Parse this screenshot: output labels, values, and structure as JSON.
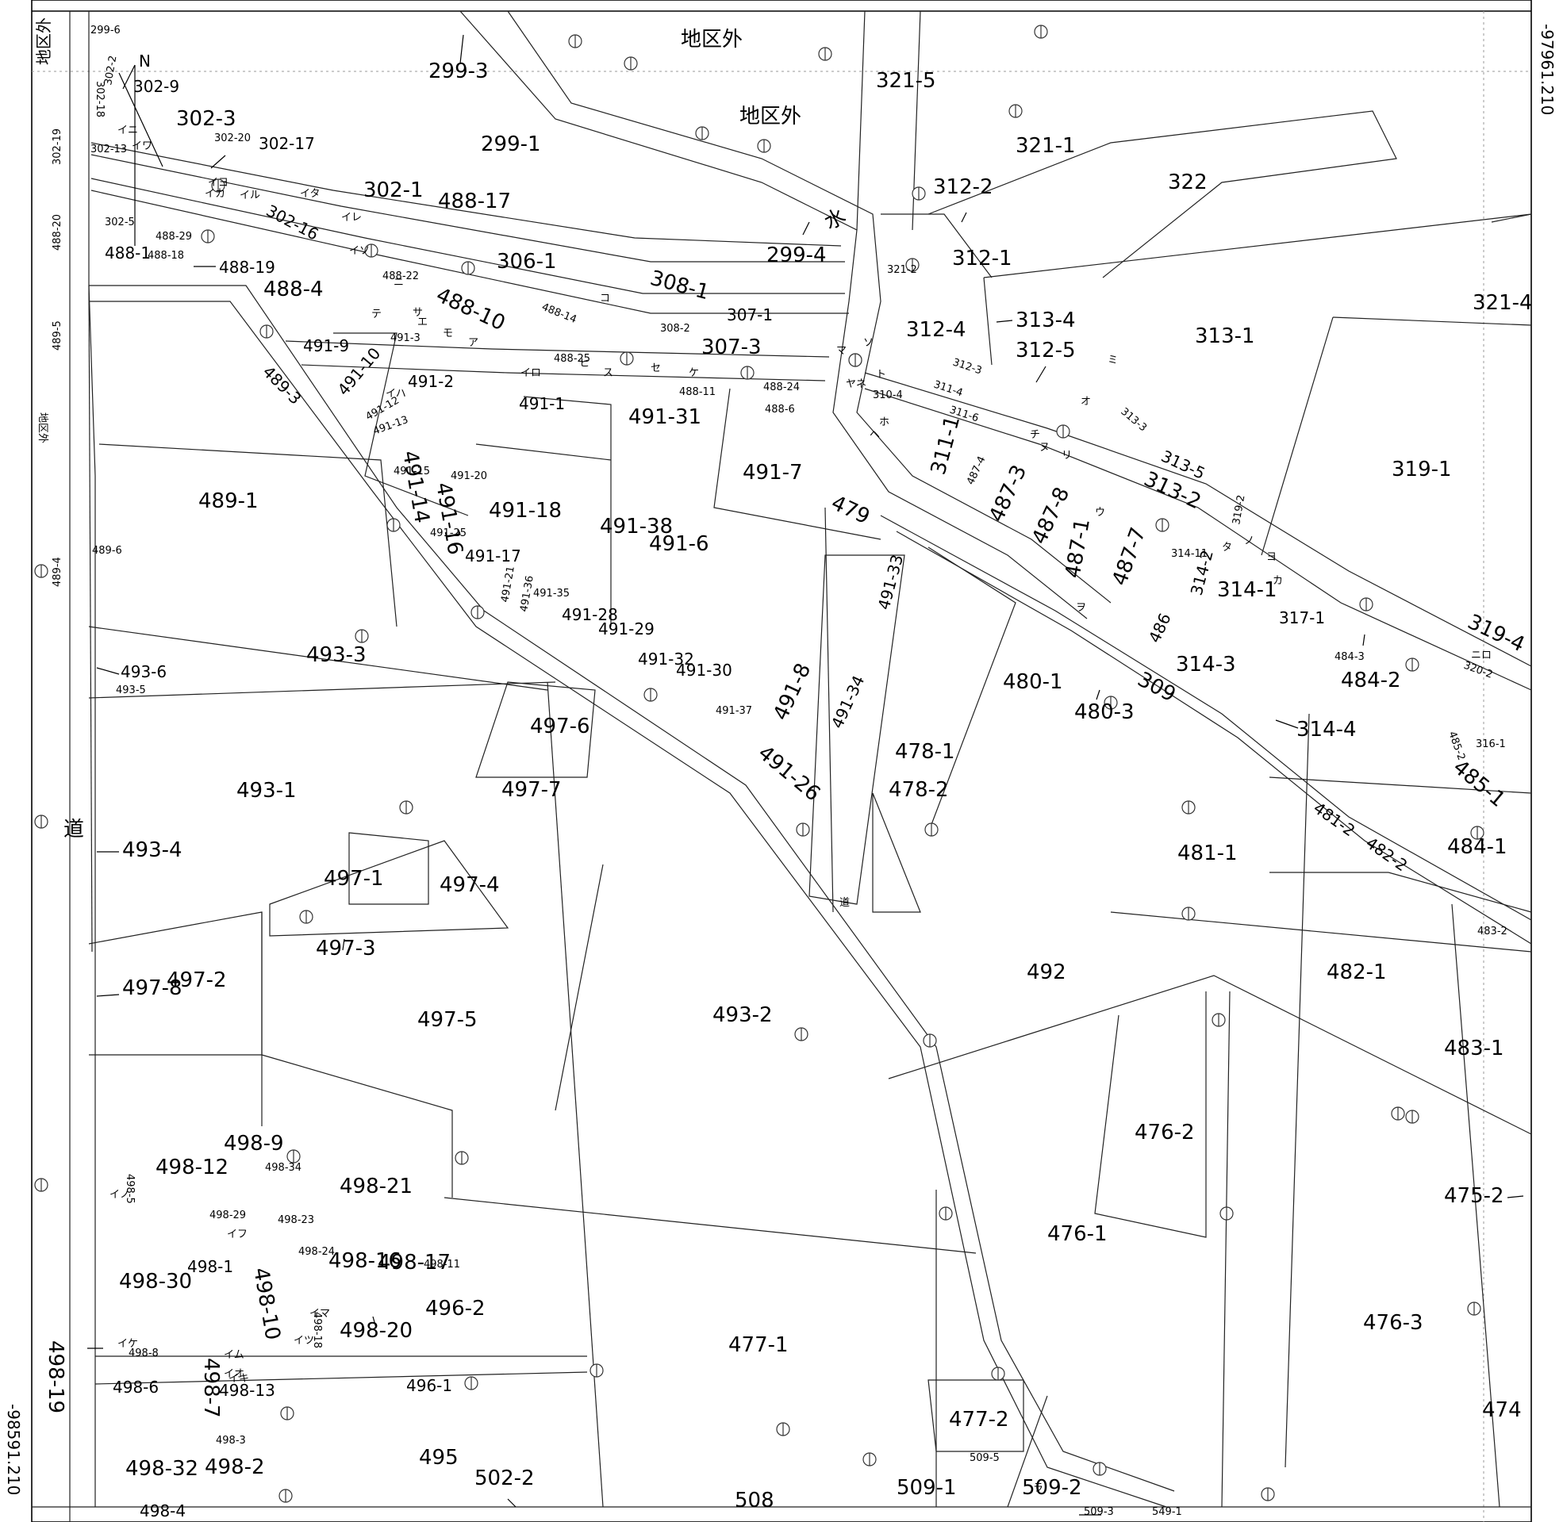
{
  "map": {
    "coords": {
      "top_right": "-97961.210",
      "bottom_left": "-98591.210"
    },
    "north_label": "N",
    "labels": {
      "outside_district_top_left": "地区外",
      "outside_district_left_small": "地区外",
      "outside_district_1": "地区外",
      "outside_district_2": "地区外",
      "road_left": "道",
      "road_center": "道",
      "water": "水"
    },
    "parcels": [
      {
        "id": "p1",
        "text": "299-3"
      },
      {
        "id": "p2",
        "text": "299-1"
      },
      {
        "id": "p3",
        "text": "299-4"
      },
      {
        "id": "p4",
        "text": "302-3"
      },
      {
        "id": "p5",
        "text": "302-1"
      },
      {
        "id": "p6",
        "text": "302-16"
      },
      {
        "id": "p7",
        "text": "488-4"
      },
      {
        "id": "p8",
        "text": "488-10"
      },
      {
        "id": "p9",
        "text": "488-19"
      },
      {
        "id": "p10",
        "text": "306-1"
      },
      {
        "id": "p11",
        "text": "308-1"
      },
      {
        "id": "p12",
        "text": "307-1"
      },
      {
        "id": "p13",
        "text": "307-3"
      },
      {
        "id": "p14",
        "text": "491-9"
      },
      {
        "id": "p15",
        "text": "491-10"
      },
      {
        "id": "p16",
        "text": "491-2"
      },
      {
        "id": "p17",
        "text": "491-1"
      },
      {
        "id": "p18",
        "text": "491-31"
      },
      {
        "id": "p19",
        "text": "491-7"
      },
      {
        "id": "p20",
        "text": "479"
      },
      {
        "id": "p21",
        "text": "489-3"
      },
      {
        "id": "p22",
        "text": "489-1"
      },
      {
        "id": "p23",
        "text": "491-18"
      },
      {
        "id": "p24",
        "text": "491-6"
      },
      {
        "id": "p25",
        "text": "493-3"
      },
      {
        "id": "p26",
        "text": "493-6"
      },
      {
        "id": "p27",
        "text": "497-6"
      },
      {
        "id": "p28",
        "text": "497-7"
      },
      {
        "id": "p29",
        "text": "493-1"
      },
      {
        "id": "p30",
        "text": "493-4"
      },
      {
        "id": "p31",
        "text": "497-1"
      },
      {
        "id": "p32",
        "text": "497-4"
      },
      {
        "id": "p33",
        "text": "497-3"
      },
      {
        "id": "p34",
        "text": "497-5"
      },
      {
        "id": "p35",
        "text": "493-2"
      },
      {
        "id": "p36",
        "text": "491-8"
      },
      {
        "id": "p37",
        "text": "491-26"
      },
      {
        "id": "p38",
        "text": "491-34"
      },
      {
        "id": "p39",
        "text": "491-33"
      },
      {
        "id": "p40",
        "text": "478-1"
      },
      {
        "id": "p41",
        "text": "480-1"
      },
      {
        "id": "p42",
        "text": "492"
      },
      {
        "id": "p43",
        "text": "481-1"
      },
      {
        "id": "p44",
        "text": "482-1"
      },
      {
        "id": "p45",
        "text": "483-1"
      },
      {
        "id": "p46",
        "text": "476-2"
      },
      {
        "id": "p47",
        "text": "476-1"
      },
      {
        "id": "p48",
        "text": "476-3"
      },
      {
        "id": "p49",
        "text": "475-2"
      },
      {
        "id": "p50",
        "text": "474"
      },
      {
        "id": "p51",
        "text": "477-1"
      },
      {
        "id": "p52",
        "text": "477-2"
      },
      {
        "id": "p53",
        "text": "496-2"
      },
      {
        "id": "p54",
        "text": "496-1"
      },
      {
        "id": "p55",
        "text": "498-9"
      },
      {
        "id": "p56",
        "text": "498-21"
      },
      {
        "id": "p57",
        "text": "498-20"
      },
      {
        "id": "p58",
        "text": "498-19"
      },
      {
        "id": "p59",
        "text": "498-6"
      },
      {
        "id": "p60",
        "text": "498-13"
      },
      {
        "id": "p61",
        "text": "498-2"
      },
      {
        "id": "p62",
        "text": "495"
      },
      {
        "id": "p63",
        "text": "502-2"
      },
      {
        "id": "p64",
        "text": "508"
      },
      {
        "id": "p65",
        "text": "509-1"
      },
      {
        "id": "p66",
        "text": "509-2"
      },
      {
        "id": "p67",
        "text": "498-4"
      },
      {
        "id": "p68",
        "text": "321-1"
      },
      {
        "id": "p69",
        "text": "312-2"
      },
      {
        "id": "p70",
        "text": "322"
      },
      {
        "id": "p71",
        "text": "312-4"
      },
      {
        "id": "p72",
        "text": "313-4"
      },
      {
        "id": "p73",
        "text": "312-5"
      },
      {
        "id": "p74",
        "text": "313-1"
      },
      {
        "id": "p75",
        "text": "321-4"
      },
      {
        "id": "p76",
        "text": "319-1"
      },
      {
        "id": "p77",
        "text": "313-5"
      },
      {
        "id": "p78",
        "text": "313-2"
      },
      {
        "id": "p79",
        "text": "314-3"
      },
      {
        "id": "p80",
        "text": "309"
      },
      {
        "id": "p81",
        "text": "484-2"
      },
      {
        "id": "p82",
        "text": "314-4"
      },
      {
        "id": "p83",
        "text": "319-4"
      },
      {
        "id": "p84",
        "text": "484-1"
      },
      {
        "id": "p85",
        "text": "485-1"
      },
      {
        "id": "p86",
        "text": "481-2"
      },
      {
        "id": "p87",
        "text": "482-2"
      },
      {
        "id": "p88",
        "text": "487-3"
      },
      {
        "id": "p89",
        "text": "487-8"
      },
      {
        "id": "p90",
        "text": "487-7"
      },
      {
        "id": "p91",
        "text": "486"
      },
      {
        "id": "p92",
        "text": "491-17"
      },
      {
        "id": "p93",
        "text": "491-28"
      },
      {
        "id": "p94",
        "text": "491-29"
      },
      {
        "id": "p95",
        "text": "491-32"
      },
      {
        "id": "p96",
        "text": "491-30"
      },
      {
        "id": "p97",
        "text": "498-30"
      },
      {
        "id": "p98",
        "text": "498-32"
      },
      {
        "id": "p99",
        "text": "498-16"
      },
      {
        "id": "p100",
        "text": "498-17"
      },
      {
        "id": "p101",
        "text": "498-12"
      },
      {
        "id": "p102",
        "text": "478-2"
      },
      {
        "id": "p103",
        "text": "480-3"
      },
      {
        "id": "p104",
        "text": "321-5"
      },
      {
        "id": "p105",
        "text": "312-1"
      },
      {
        "id": "p106",
        "text": "488-17"
      },
      {
        "id": "p107",
        "text": "302-9"
      },
      {
        "id": "p108",
        "text": "302-17"
      },
      {
        "id": "p109",
        "text": "491-38"
      },
      {
        "id": "p110",
        "text": "497-8"
      },
      {
        "id": "p111",
        "text": "497-2"
      },
      {
        "id": "p112",
        "text": "498-7"
      },
      {
        "id": "p113",
        "text": "498-10"
      },
      {
        "id": "p114",
        "text": "498-1"
      },
      {
        "id": "p115",
        "text": "314-1"
      },
      {
        "id": "p116",
        "text": "317-1"
      },
      {
        "id": "p117",
        "text": "311-1"
      },
      {
        "id": "p118",
        "text": "487-1"
      },
      {
        "id": "p119",
        "text": "314-2"
      },
      {
        "id": "p120",
        "text": "491-14"
      },
      {
        "id": "p121",
        "text": "491-16"
      },
      {
        "id": "p122",
        "text": "488-1"
      }
    ],
    "small_labels": [
      "299-6",
      "302-18",
      "302-2",
      "302-13",
      "302-20",
      "302-19",
      "302-5",
      "488-20",
      "488-29",
      "488-18",
      "488-22",
      "488-14",
      "488-25",
      "488-11",
      "488-24",
      "488-6",
      "308-2",
      "491-3",
      "491-12",
      "491-13",
      "491-15",
      "491-20",
      "491-25",
      "491-21",
      "491-36",
      "491-35",
      "491-37",
      "489-5",
      "489-6",
      "489-4",
      "493-5",
      "498-8",
      "498-29",
      "498-23",
      "498-34",
      "498-24",
      "498-18",
      "498-11",
      "498-5",
      "498-3",
      "509-5",
      "509-3",
      "549-1",
      "321-2",
      "310-4",
      "311-4",
      "311-6",
      "312-3",
      "313-3",
      "487-4",
      "314-11",
      "319-2",
      "484-3",
      "320-2",
      "485-2",
      "316-1",
      "483-2"
    ],
    "leader_marks": [
      "イニ",
      "イワ",
      "イヨ",
      "イカ",
      "イル",
      "イタ",
      "イレ",
      "イソ",
      "イロ",
      "イハ",
      "ニ",
      "テ",
      "サ",
      "エ",
      "モ",
      "ア",
      "ヒ",
      "ス",
      "セ",
      "ケ",
      "ヤネ",
      "マ",
      "ソ",
      "ト",
      "ホ",
      "ヘ",
      "チ",
      "ヌ",
      "リ",
      "ウ",
      "オ",
      "ヲ",
      "ノ",
      "ヨ",
      "ミ",
      "コ",
      "ラ",
      "カ",
      "タ",
      "イノ",
      "イフ",
      "イケ",
      "イム",
      "イキ",
      "イツ",
      "イマ",
      "イオ",
      "ニロ"
    ]
  }
}
